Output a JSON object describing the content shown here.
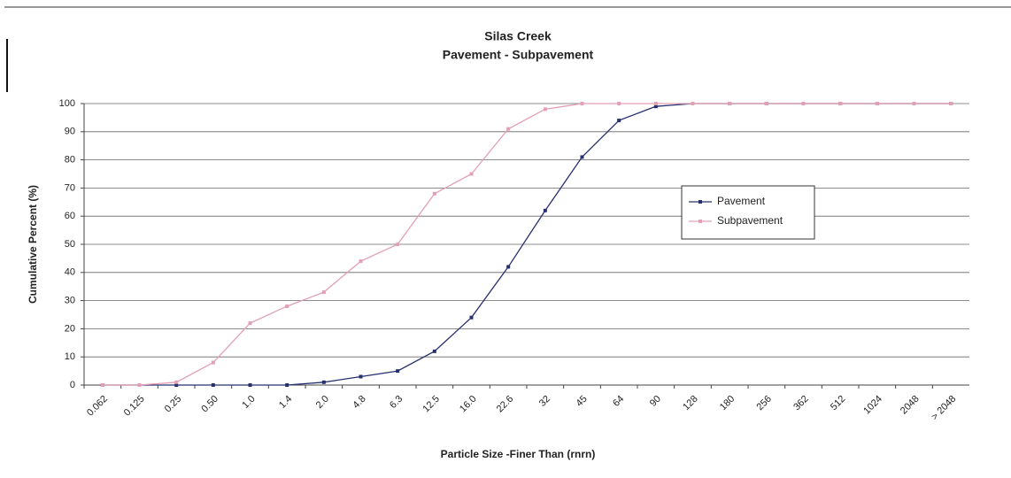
{
  "chart_data": {
    "type": "line",
    "title": "Silas Creek",
    "subtitle": "Pavement - Subpavement",
    "ylabel": "Cumulative Percent (%)",
    "xlabel": "Particle Size -Finer Than (rnrn)",
    "categories": [
      "0.062",
      "0.125",
      "0.25",
      "0.50",
      "1.0",
      "1.4",
      "2.0",
      "4.8",
      "6.3",
      "12.5",
      "16.0",
      "22.6",
      "32",
      "45",
      "64",
      "90",
      "128",
      "180",
      "256",
      "362",
      "512",
      "1024",
      "2048",
      "> 2048"
    ],
    "series": [
      {
        "name": "Pavement",
        "color": "#27306e",
        "values": [
          0,
          0,
          0,
          0,
          0,
          0,
          1,
          3,
          5,
          12,
          24,
          42,
          62,
          81,
          94,
          99,
          100,
          100,
          100,
          100,
          100,
          100,
          100,
          100
        ]
      },
      {
        "name": "Subpavement",
        "color": "#e3a0b4",
        "values": [
          0,
          0,
          1,
          8,
          22,
          28,
          33,
          44,
          50,
          68,
          75,
          91,
          98,
          100,
          100,
          100,
          100,
          100,
          100,
          100,
          100,
          100,
          100,
          100
        ]
      }
    ],
    "ylim": [
      0,
      100
    ],
    "yticks": [
      0,
      10,
      20,
      30,
      40,
      50,
      60,
      70,
      80,
      90,
      100
    ],
    "grid": true,
    "legend": "center right"
  }
}
